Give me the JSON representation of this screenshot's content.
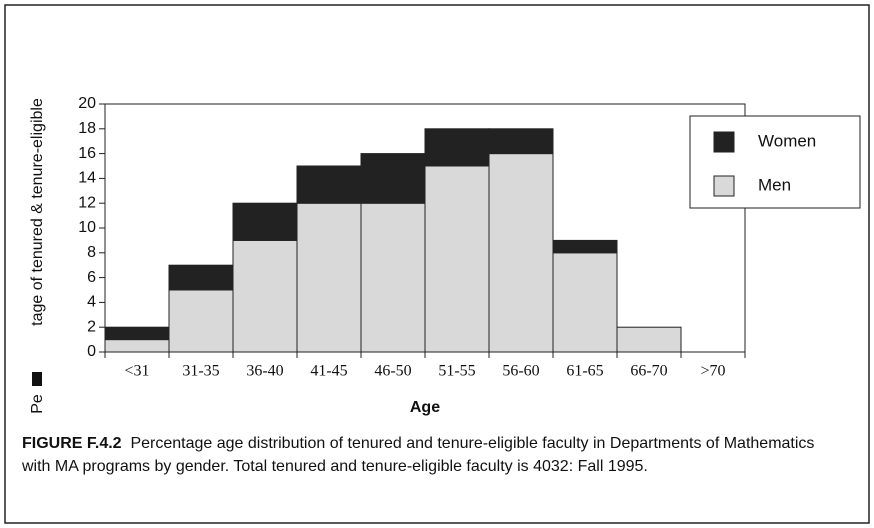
{
  "chart_data": {
    "type": "stacked_bar",
    "categories": [
      "<31",
      "31-35",
      "36-40",
      "41-45",
      "46-50",
      "51-55",
      "56-60",
      "61-65",
      "66-70",
      ">70"
    ],
    "series": [
      {
        "name": "Men",
        "color": "#d9d9d9",
        "values": [
          1,
          5,
          9,
          12,
          12,
          15,
          16,
          8,
          2,
          0
        ]
      },
      {
        "name": "Women",
        "color": "#222222",
        "values": [
          1,
          2,
          3,
          3,
          4,
          3,
          2,
          1,
          0,
          0
        ]
      }
    ],
    "ylim": [
      0,
      20
    ],
    "yticks": [
      0,
      2,
      4,
      6,
      8,
      10,
      12,
      14,
      16,
      18,
      20
    ],
    "ylabel": "tage of tenured & tenure-eligible",
    "ylabel_fragment": "Pe",
    "xlabel": "Age",
    "legend": "upper right",
    "caption_label": "FIGURE F.4.2",
    "caption": "Percentage age distribution of tenured and tenure-eligible faculty in Departments of Mathematics with MA programs by gender. Total tenured and tenure-eligible faculty is 4032: Fall 1995."
  }
}
